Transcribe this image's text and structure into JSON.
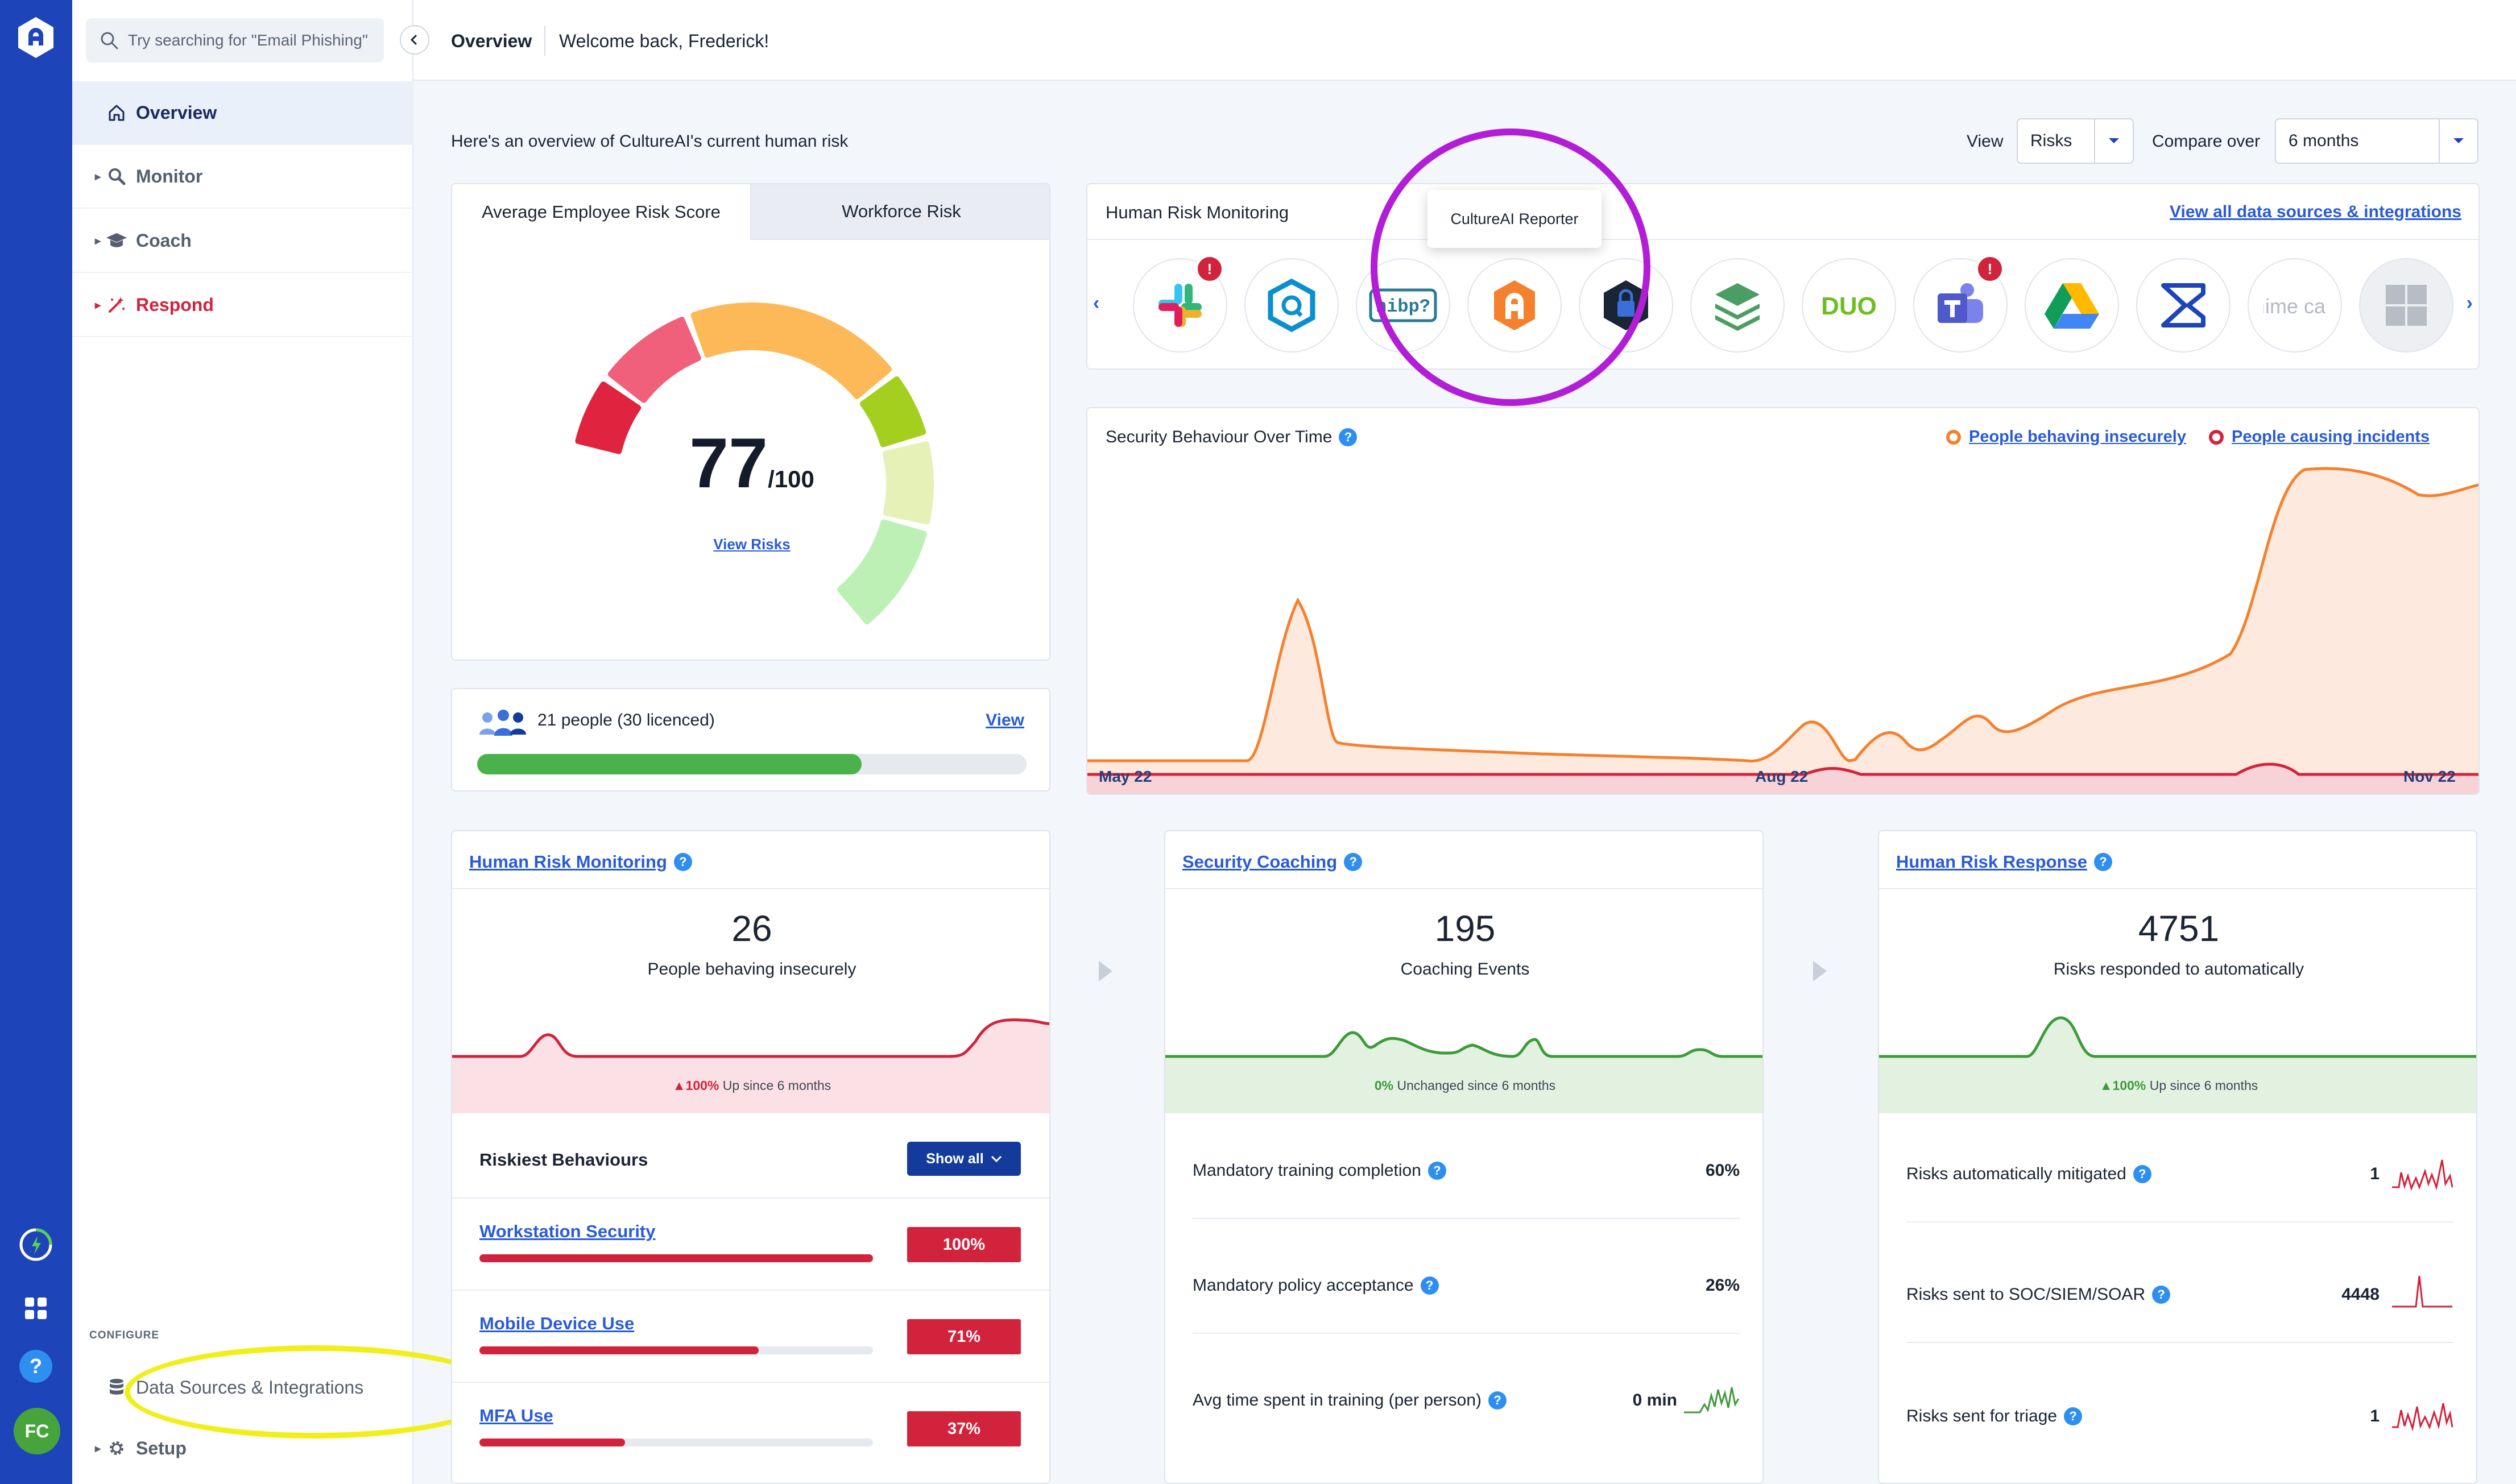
{
  "search": {
    "placeholder": "Try searching for \"Email Phishing\""
  },
  "nav": {
    "items": [
      {
        "label": "Overview"
      },
      {
        "label": "Monitor"
      },
      {
        "label": "Coach"
      },
      {
        "label": "Respond"
      }
    ],
    "configure_label": "CONFIGURE",
    "data_sources": "Data Sources & Integrations",
    "setup": "Setup"
  },
  "rail": {
    "avatar": "FC",
    "help": "?"
  },
  "header": {
    "title": "Overview",
    "welcome": "Welcome back, Frederick!"
  },
  "intro": "Here's an overview of CultureAI's current human risk",
  "controls": {
    "view_label": "View",
    "view_value": "Risks",
    "compare_label": "Compare over",
    "compare_value": "6 months"
  },
  "risk_card": {
    "tabs": [
      "Average Employee Risk Score",
      "Workforce Risk"
    ],
    "score": "77",
    "score_max": "/100",
    "view_risks": "View Risks"
  },
  "people": {
    "text": "21 people (30 licenced)",
    "view": "View",
    "licence_fill": 0.7
  },
  "hrm": {
    "title": "Human Risk Monitoring",
    "link": "View all data sources & integrations",
    "tooltip": "CultureAI Reporter",
    "integrations": [
      {
        "name": "slack-icon",
        "warning": true
      },
      {
        "name": "qualys-icon",
        "warning": false
      },
      {
        "name": "hibp-icon",
        "warning": false,
        "label": "hibp?"
      },
      {
        "name": "cultureai-reporter-icon",
        "warning": false
      },
      {
        "name": "crowdstrike-icon",
        "warning": false
      },
      {
        "name": "layers-icon",
        "warning": false
      },
      {
        "name": "duo-icon",
        "warning": false,
        "label": "DUO"
      },
      {
        "name": "teams-icon",
        "warning": true
      },
      {
        "name": "google-drive-icon",
        "warning": false
      },
      {
        "name": "sigma-icon",
        "warning": false
      },
      {
        "name": "mimecast-icon",
        "warning": false,
        "label": "mime cast"
      },
      {
        "name": "windows-icon",
        "warning": false
      }
    ],
    "warning_glyph": "!"
  },
  "security_behaviour": {
    "title": "Security Behaviour Over Time",
    "legend": [
      {
        "label": "People behaving insecurely",
        "color": "#f5812e"
      },
      {
        "label": "People causing incidents",
        "color": "#d2233c"
      }
    ],
    "ticks": [
      "May 22",
      "Aug 22",
      "Nov 22"
    ]
  },
  "chart_data": {
    "type": "area",
    "x": [
      "May 22",
      "Aug 22",
      "Nov 22"
    ],
    "series": [
      {
        "name": "People behaving insecurely",
        "color": "#f5812e"
      },
      {
        "name": "People causing incidents",
        "color": "#d2233c"
      }
    ]
  },
  "cards": {
    "monitoring": {
      "title": "Human Risk Monitoring",
      "number": "26",
      "subtitle": "People behaving insecurely",
      "trend_value": "100%",
      "trend_text": "Up since 6 months",
      "riskiest_title": "Riskiest Behaviours",
      "show_all": "Show all",
      "behaviours": [
        {
          "name": "Workstation Security",
          "pct": "100%",
          "fill": 1.0
        },
        {
          "name": "Mobile Device Use",
          "pct": "71%",
          "fill": 0.71
        },
        {
          "name": "MFA Use",
          "pct": "37%",
          "fill": 0.37
        }
      ]
    },
    "coaching": {
      "title": "Security Coaching",
      "number": "195",
      "subtitle": "Coaching Events",
      "trend_value": "0%",
      "trend_text": "Unchanged since 6 months",
      "metrics": [
        {
          "label": "Mandatory training completion",
          "value": "60%"
        },
        {
          "label": "Mandatory policy acceptance",
          "value": "26%"
        },
        {
          "label": "Avg time spent in training (per person)",
          "value": "0 min"
        }
      ]
    },
    "response": {
      "title": "Human Risk Response",
      "number": "4751",
      "subtitle": "Risks responded to automatically",
      "trend_value": "100%",
      "trend_text": "Up since 6 months",
      "metrics": [
        {
          "label": "Risks automatically mitigated",
          "value": "1"
        },
        {
          "label": "Risks sent to SOC/SIEM/SOAR",
          "value": "4448"
        },
        {
          "label": "Risks sent for triage",
          "value": "1"
        }
      ]
    }
  },
  "colors": {
    "brand": "#1d44b8",
    "link": "#2a5bd7",
    "danger": "#d2233c",
    "success": "#4bb14a",
    "orange": "#f5812e"
  }
}
